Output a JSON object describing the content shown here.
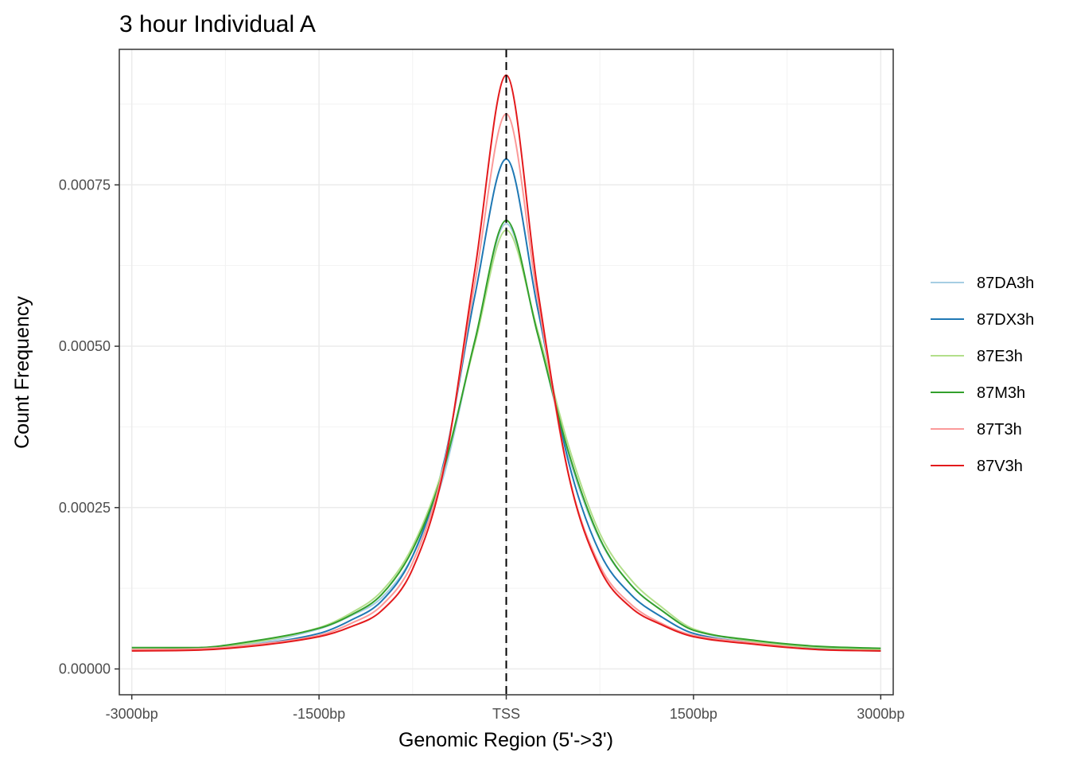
{
  "chart_data": {
    "type": "line",
    "title": "3 hour Individual A",
    "xlabel": "Genomic Region (5'->3')",
    "ylabel": "Count Frequency",
    "xlim": [
      -3100,
      3100
    ],
    "ylim": [
      -4e-05,
      0.00096
    ],
    "x_ticks": [
      {
        "value": -3000,
        "label": "-3000bp"
      },
      {
        "value": -1500,
        "label": "-1500bp"
      },
      {
        "value": 0,
        "label": "TSS"
      },
      {
        "value": 1500,
        "label": "1500bp"
      },
      {
        "value": 3000,
        "label": "3000bp"
      }
    ],
    "y_ticks": [
      {
        "value": 0.0,
        "label": "0.00000"
      },
      {
        "value": 0.00025,
        "label": "0.00025"
      },
      {
        "value": 0.0005,
        "label": "0.00050"
      },
      {
        "value": 0.00075,
        "label": "0.00075"
      }
    ],
    "grid": true,
    "vline": {
      "x": 0,
      "style": "dashed",
      "color": "#000000"
    },
    "legend_position": "right",
    "x": [
      -3000,
      -2500,
      -2000,
      -1500,
      -1250,
      -1000,
      -750,
      -500,
      -250,
      0,
      250,
      500,
      750,
      1000,
      1250,
      1500,
      2000,
      2500,
      3000
    ],
    "series": [
      {
        "name": "87DA3h",
        "color": "#a6cee3",
        "values": [
          3e-05,
          3.1e-05,
          4e-05,
          6.2e-05,
          8.2e-05,
          0.00011,
          0.000175,
          0.0003,
          0.00051,
          0.00069,
          0.00052,
          0.00033,
          0.0002,
          0.00013,
          9e-05,
          6e-05,
          4.2e-05,
          3.2e-05,
          3e-05
        ]
      },
      {
        "name": "87DX3h",
        "color": "#1f78b4",
        "values": [
          3e-05,
          3.1e-05,
          3.8e-05,
          5.5e-05,
          7.5e-05,
          0.000105,
          0.000175,
          0.00032,
          0.00058,
          0.00079,
          0.00056,
          0.00032,
          0.00018,
          0.000115,
          8e-05,
          5.5e-05,
          4e-05,
          3.1e-05,
          2.8e-05
        ]
      },
      {
        "name": "87E3h",
        "color": "#b2df8a",
        "values": [
          3e-05,
          3.2e-05,
          4.2e-05,
          6.4e-05,
          8.6e-05,
          0.00012,
          0.00019,
          0.000315,
          0.000505,
          0.00068,
          0.000525,
          0.000345,
          0.00021,
          0.000138,
          9.5e-05,
          6.2e-05,
          4.2e-05,
          3.3e-05,
          3e-05
        ]
      },
      {
        "name": "87M3h",
        "color": "#33a02c",
        "values": [
          3.3e-05,
          3.3e-05,
          4.4e-05,
          6.3e-05,
          8.3e-05,
          0.000115,
          0.000185,
          0.00031,
          0.00051,
          0.000695,
          0.00052,
          0.000335,
          0.000202,
          0.00013,
          9e-05,
          6e-05,
          4.4e-05,
          3.5e-05,
          3.2e-05
        ]
      },
      {
        "name": "87T3h",
        "color": "#fb9a99",
        "values": [
          3e-05,
          3.1e-05,
          3.8e-05,
          5.2e-05,
          7e-05,
          9.8e-05,
          0.000165,
          0.000315,
          0.0006,
          0.00086,
          0.000575,
          0.0003,
          0.00016,
          0.0001,
          7e-05,
          5.2e-05,
          4e-05,
          3e-05,
          2.8e-05
        ]
      },
      {
        "name": "87V3h",
        "color": "#e31a1c",
        "values": [
          2.8e-05,
          2.9e-05,
          3.6e-05,
          5e-05,
          6.5e-05,
          9e-05,
          0.000155,
          0.00031,
          0.00062,
          0.00092,
          0.00059,
          0.0003,
          0.000155,
          9.5e-05,
          6.8e-05,
          5e-05,
          3.8e-05,
          3e-05,
          2.8e-05
        ]
      }
    ]
  }
}
